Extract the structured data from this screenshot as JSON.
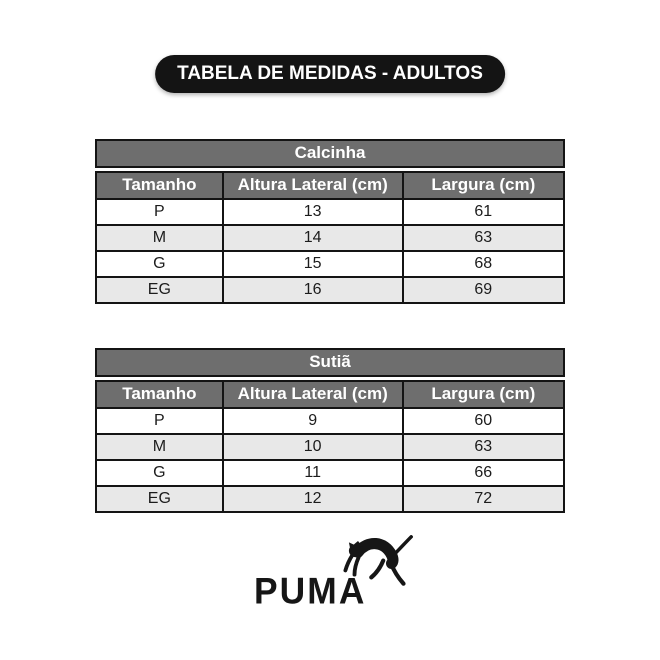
{
  "banner": {
    "label": "TABELA DE MEDIDAS - ADULTOS"
  },
  "colors": {
    "banner_bg": "#141414",
    "header_bg": "#6e6e6e",
    "alt_row_bg": "#e8e8e8",
    "border": "#141414",
    "cell_text": "#1c1c1c"
  },
  "tables": [
    {
      "title": "Calcinha",
      "columns": [
        "Tamanho",
        "Altura Lateral (cm)",
        "Largura (cm)"
      ],
      "rows": [
        [
          "P",
          "13",
          "61"
        ],
        [
          "M",
          "14",
          "63"
        ],
        [
          "G",
          "15",
          "68"
        ],
        [
          "EG",
          "16",
          "69"
        ]
      ]
    },
    {
      "title": "Sutiã",
      "columns": [
        "Tamanho",
        "Altura Lateral (cm)",
        "Largura (cm)"
      ],
      "rows": [
        [
          "P",
          "9",
          "60"
        ],
        [
          "M",
          "10",
          "63"
        ],
        [
          "G",
          "11",
          "66"
        ],
        [
          "EG",
          "12",
          "72"
        ]
      ]
    }
  ],
  "logo": {
    "brand": "PUMA",
    "icon": "leaping-puma-icon"
  }
}
